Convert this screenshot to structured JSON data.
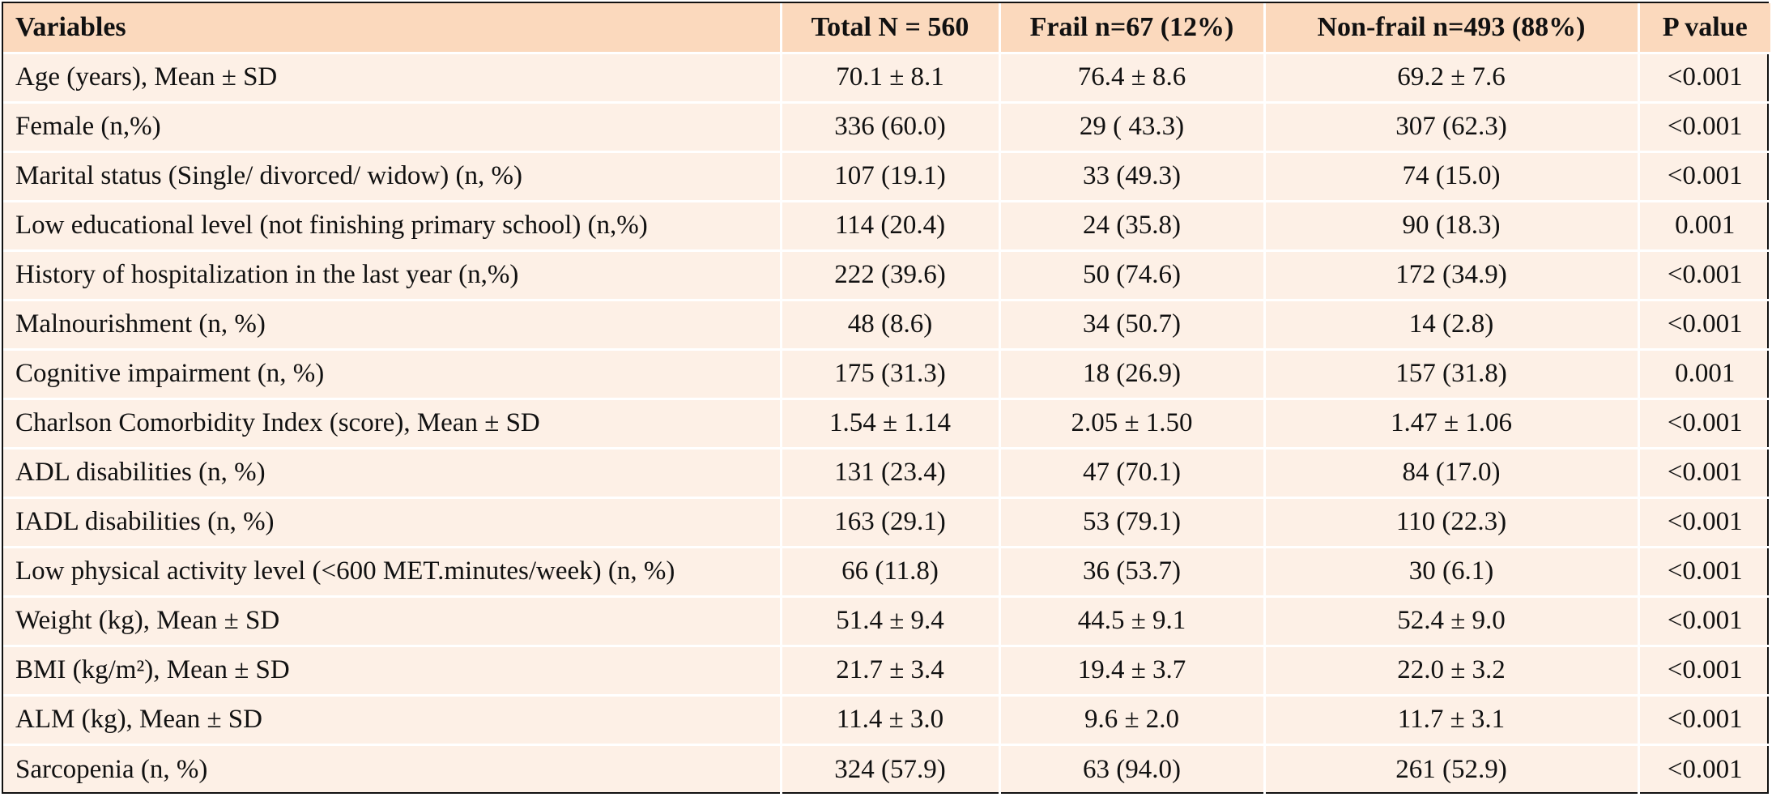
{
  "table": {
    "headers": [
      "Variables",
      "Total N = 560",
      "Frail n=67  (12%)",
      "Non-frail  n=493  (88%)",
      "P value"
    ],
    "rows": [
      [
        "Age (years), Mean ± SD",
        "70.1 ± 8.1",
        "76.4 ± 8.6",
        "69.2  ± 7.6",
        "<0.001"
      ],
      [
        "Female (n,%)",
        "336 (60.0)",
        "29 ( 43.3)",
        "307 (62.3)",
        "<0.001"
      ],
      [
        "Marital status (Single/ divorced/ widow) (n, %)",
        "107 (19.1)",
        "33 (49.3)",
        "74 (15.0)",
        "<0.001"
      ],
      [
        "Low educational level (not finishing primary school) (n,%)",
        "114 (20.4)",
        "24 (35.8)",
        "90 (18.3)",
        "0.001"
      ],
      [
        "History of hospitalization in the last year (n,%)",
        "222 (39.6)",
        "50 (74.6)",
        "172 (34.9)",
        "<0.001"
      ],
      [
        "Malnourishment (n, %)",
        "48 (8.6)",
        "34 (50.7)",
        "14 (2.8)",
        "<0.001"
      ],
      [
        "Cognitive impairment (n, %)",
        "175 (31.3)",
        "18 (26.9)",
        "157 (31.8)",
        "0.001"
      ],
      [
        "Charlson Comorbidity Index (score), Mean ± SD",
        "1.54 ± 1.14",
        "2.05 ± 1.50",
        "1.47 ± 1.06",
        "<0.001"
      ],
      [
        "ADL disabilities (n, %)",
        "131 (23.4)",
        "47 (70.1)",
        "84 (17.0)",
        "<0.001"
      ],
      [
        "IADL disabilities (n, %)",
        "163 (29.1)",
        "53 (79.1)",
        "110 (22.3)",
        "<0.001"
      ],
      [
        "Low physical activity level (<600 MET.minutes/week) (n, %)",
        "66 (11.8)",
        "36 (53.7)",
        "30 (6.1)",
        "<0.001"
      ],
      [
        "Weight (kg), Mean ± SD",
        "51.4 ± 9.4",
        "44.5 ± 9.1",
        "52.4 ± 9.0",
        "<0.001"
      ],
      [
        "BMI (kg/m²), Mean ± SD",
        "21.7 ± 3.4",
        "19.4 ± 3.7",
        "22.0 ± 3.2",
        "<0.001"
      ],
      [
        "ALM (kg), Mean ± SD",
        "11.4 ± 3.0",
        "9.6 ± 2.0",
        "11.7 ± 3.1",
        "<0.001"
      ],
      [
        "Sarcopenia (n, %)",
        "324 (57.9)",
        "63 (94.0)",
        "261 (52.9)",
        "<0.001"
      ]
    ]
  },
  "colors": {
    "header_background": "#fbd9bd",
    "row_background": "#fdf0e6",
    "cell_divider": "#ffffff",
    "outer_border": "#111111"
  }
}
